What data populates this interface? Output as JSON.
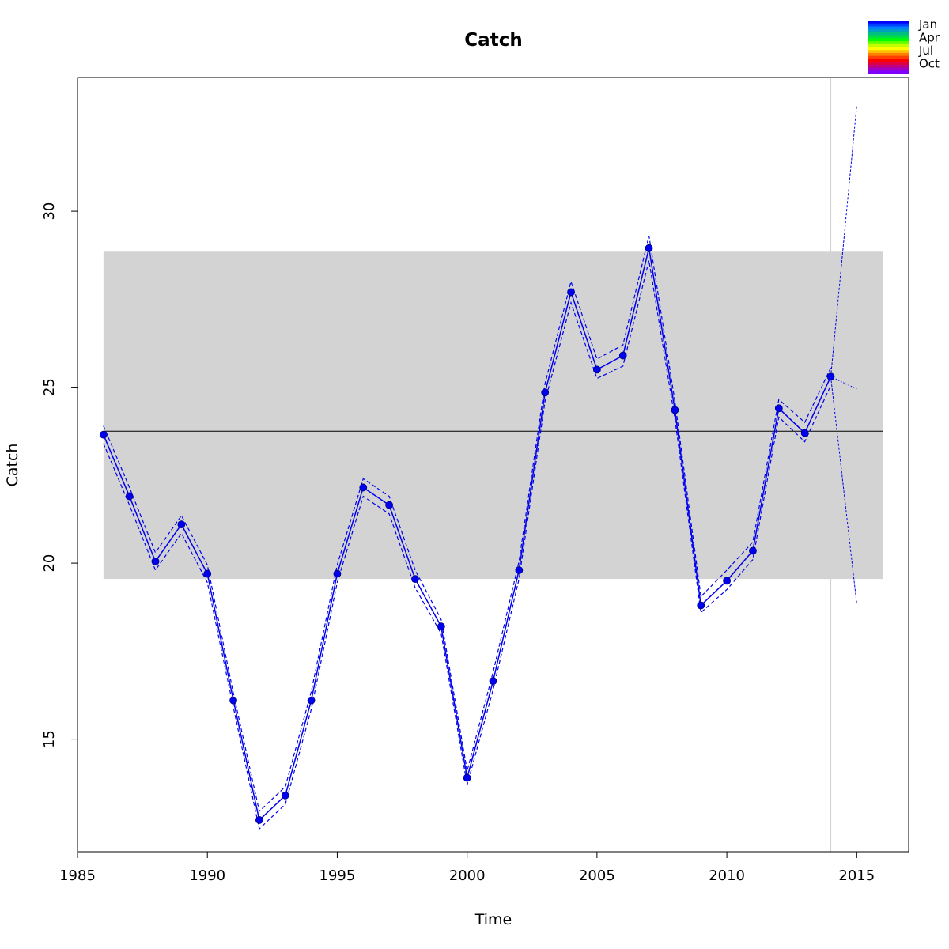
{
  "chart_data": {
    "type": "line",
    "title": "Catch",
    "xlabel": "Time",
    "ylabel": "Catch",
    "xlim": [
      1985,
      2017
    ],
    "ylim": [
      11.8,
      33.8
    ],
    "x_ticks": [
      "1985",
      "1990",
      "1995",
      "2000",
      "2005",
      "2010",
      "2015"
    ],
    "y_ticks": [
      "15",
      "20",
      "25",
      "30"
    ],
    "band": {
      "from_x": 1986,
      "to_x": 2016,
      "y_low": 19.55,
      "y_high": 28.85,
      "color": "#d3d3d3"
    },
    "mean_line": {
      "y": 23.75,
      "from_x": 1986,
      "to_x": 2016,
      "color": "#000000"
    },
    "vertical_marker": {
      "x": 2014,
      "color": "#d3d3d3"
    },
    "series": [
      {
        "color": "#0000ee",
        "x": [
          1986,
          1987,
          1988,
          1989,
          1990,
          1991,
          1992,
          1993,
          1994,
          1995,
          1996,
          1997,
          1998,
          1999,
          2000,
          2001,
          2002,
          2003,
          2004,
          2005,
          2006,
          2007,
          2008,
          2009,
          2010,
          2011,
          2012,
          2013,
          2014
        ],
        "values": [
          23.65,
          21.9,
          20.05,
          21.1,
          19.7,
          16.1,
          12.7,
          13.4,
          16.1,
          19.7,
          22.15,
          21.65,
          19.55,
          18.2,
          13.9,
          16.65,
          19.8,
          24.85,
          27.7,
          25.5,
          25.9,
          28.95,
          24.35,
          18.8,
          19.5,
          20.35,
          24.4,
          23.7,
          25.3
        ],
        "upper": [
          23.9,
          22.15,
          20.3,
          21.35,
          19.95,
          16.3,
          12.95,
          13.65,
          16.35,
          19.95,
          22.4,
          21.9,
          19.8,
          18.4,
          14.1,
          16.9,
          20.05,
          25.1,
          28.0,
          25.8,
          26.2,
          29.3,
          24.6,
          19.05,
          19.8,
          20.6,
          24.65,
          24.0,
          25.55
        ],
        "lower": [
          23.4,
          21.65,
          19.8,
          20.85,
          19.45,
          15.9,
          12.45,
          13.15,
          15.85,
          19.45,
          21.9,
          21.4,
          19.3,
          18.0,
          13.7,
          16.4,
          19.55,
          24.6,
          27.4,
          25.25,
          25.6,
          28.6,
          24.1,
          18.6,
          19.25,
          20.1,
          24.15,
          23.45,
          25.05
        ],
        "forecast": {
          "from": [
            2014,
            25.3
          ],
          "mean": [
            2015,
            24.95
          ],
          "upper": [
            2015,
            33.0
          ],
          "lower": [
            2015,
            18.85
          ]
        }
      }
    ],
    "legend": {
      "position": "top-right",
      "labels": [
        "Jan",
        "Apr",
        "Jul",
        "Oct"
      ],
      "colors": [
        "#0000ff",
        "#0040ff",
        "#0080ff",
        "#00a0c0",
        "#00c080",
        "#00e040",
        "#00ff00",
        "#60ff00",
        "#c0ff00",
        "#ffff00",
        "#ffc000",
        "#ff8000",
        "#ff4000",
        "#ff0000",
        "#e00040",
        "#c00080",
        "#a000c0",
        "#8000ff"
      ]
    }
  }
}
